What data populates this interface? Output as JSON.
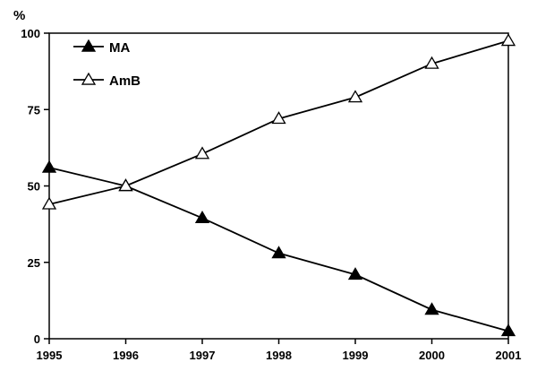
{
  "chart_data": {
    "type": "line",
    "title": "",
    "xlabel": "",
    "ylabel": "%",
    "x": [
      1995,
      1996,
      1997,
      1998,
      1999,
      2000,
      2001
    ],
    "xlim": [
      1995,
      2001
    ],
    "ylim": [
      0,
      100
    ],
    "yticks": [
      0,
      25,
      50,
      75,
      100
    ],
    "grid": false,
    "legend_position": "top-left",
    "series": [
      {
        "name": "MA",
        "marker": "filled-triangle",
        "color": "#000000",
        "values": [
          56,
          50,
          39.5,
          28,
          21,
          9.5,
          2.5
        ]
      },
      {
        "name": "AmB",
        "marker": "open-triangle",
        "color": "#000000",
        "values": [
          44,
          50,
          60.5,
          72,
          79,
          90,
          97.5
        ]
      }
    ]
  }
}
